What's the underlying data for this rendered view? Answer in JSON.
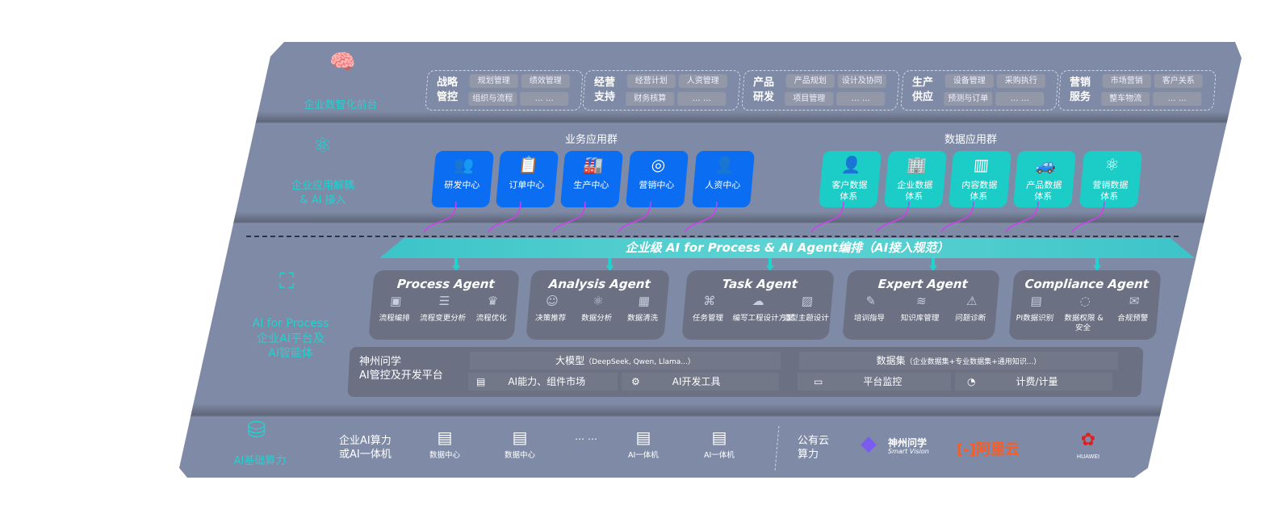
{
  "layers": {
    "front": "企业数智化前台",
    "apps": "企业应用解耦\n& AI 接入",
    "ai_en": "AI for Process",
    "ai_cn": "企业AI平台及\nAI智能体",
    "infra": "AI基础算力"
  },
  "front_groups": [
    {
      "title": "战略\n管控",
      "chips": [
        "规划管理",
        "绩效管理",
        "组织与流程",
        "… …"
      ]
    },
    {
      "title": "经营\n支持",
      "chips": [
        "经营计划",
        "人资管理",
        "财务核算",
        "… …"
      ]
    },
    {
      "title": "产品\n研发",
      "chips": [
        "产品规划",
        "设计及协同",
        "项目管理",
        "… …"
      ]
    },
    {
      "title": "生产\n供应",
      "chips": [
        "设备管理",
        "采购执行",
        "预测与订单",
        "… …"
      ]
    },
    {
      "title": "营销\n服务",
      "chips": [
        "市场营销",
        "客户关系",
        "整车物流",
        "… …"
      ]
    }
  ],
  "biz_apps": {
    "title": "业务应用群",
    "items": [
      {
        "label": "研发中心",
        "icon": "users-icon"
      },
      {
        "label": "订单中心",
        "icon": "clipboard-icon"
      },
      {
        "label": "生产中心",
        "icon": "factory-icon"
      },
      {
        "label": "营销中心",
        "icon": "target-icon"
      },
      {
        "label": "人资中心",
        "icon": "person-icon"
      }
    ]
  },
  "data_apps": {
    "title": "数据应用群",
    "items": [
      {
        "label": "客户数据\n体系",
        "icon": "person-icon"
      },
      {
        "label": "企业数据\n体系",
        "icon": "building-icon"
      },
      {
        "label": "内容数据\n体系",
        "icon": "books-icon"
      },
      {
        "label": "产品数据\n体系",
        "icon": "car-icon"
      },
      {
        "label": "营销数据\n体系",
        "icon": "atom-icon"
      }
    ]
  },
  "orchestration": "企业级 AI for Process & AI Agent编排（AI接入规范）",
  "agents": [
    {
      "name": "Process Agent",
      "items": [
        "流程编排",
        "流程变更分析",
        "流程优化"
      ]
    },
    {
      "name": "Analysis Agent",
      "items": [
        "决策推荐",
        "数据分析",
        "数据清洗"
      ]
    },
    {
      "name": "Task Agent",
      "items": [
        "任务管理",
        "编写工程设计方案",
        "造型主题设计"
      ]
    },
    {
      "name": "Expert Agent",
      "items": [
        "培训指导",
        "知识库管理",
        "问题诊断"
      ]
    },
    {
      "name": "Compliance Agent",
      "items": [
        "PI数据识别",
        "数据权限 &\n安全",
        "合规预警"
      ]
    }
  ],
  "platform": {
    "title": "神州问学\nAI管控及开发平台",
    "llm": "大模型",
    "llm_note": "（DeepSeek, Qwen, Llama...）",
    "market": "AI能力、组件市场",
    "devtools": "AI开发工具",
    "dataset": "数据集",
    "dataset_note": "（企业数据集+专业数据集+通用知识...）",
    "monitor": "平台监控",
    "billing": "计费/计量"
  },
  "infra": {
    "onprem": "企业AI算力\n或AI一体机",
    "nodes": [
      "数据中心",
      "数据中心",
      "AI一体机",
      "AI一体机"
    ],
    "ellipsis": "… …",
    "cloud": "公有云\n算力",
    "vendors": {
      "smartvision_cn": "神州问学",
      "smartvision_en": "Smart Vision",
      "aliyun": "阿里云",
      "huawei": "HUAWEI"
    }
  },
  "colors": {
    "board": "#7f8ba6",
    "teal": "#1fd3d0",
    "blue": "#0a6df2",
    "tealTile": "#1cccc6",
    "magenta": "#d43cf0"
  }
}
